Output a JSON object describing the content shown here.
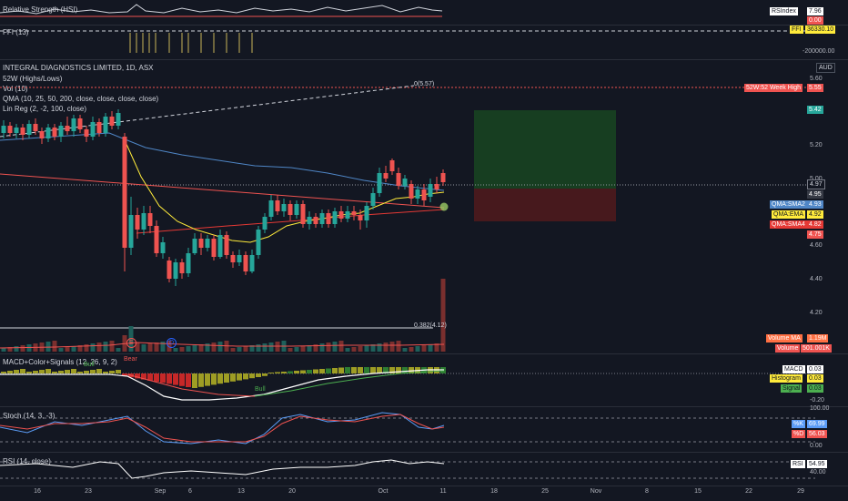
{
  "rsi_hsi": {
    "title": "Relative Strength (HSI)",
    "legend_label": "RSIndex",
    "legend_value": "7.96",
    "label2": "0.00"
  },
  "ffi": {
    "title": "FFI (13)",
    "legend_label": "FFI",
    "legend_value": "36330.10",
    "tick": "-200000.00"
  },
  "main": {
    "symbol": "INTEGRAL DIAGNOSTICS LIMITED, 1D, ASX",
    "ind1": "52W (Highs/Lows)",
    "ind2": "Vol (10)",
    "ind3": "QMA (10, 25, 50, 200, close, close, close, close)",
    "ind4": "Lin Reg (2, -2, 100, close)",
    "currency": "AUD",
    "fib_top": "0(5.57)",
    "fib_bottom": "0.382(4.12)",
    "ticks": [
      "5.60",
      "5.20",
      "5.00",
      "4.60",
      "4.40",
      "4.20"
    ],
    "labels": {
      "week52": "52W:52 Week High",
      "week52_val": "5.55",
      "target": "5.42",
      "last": "4.97",
      "entry": "4.95",
      "sma2_label": "QMA:SMA2",
      "sma2_val": "4.93",
      "ema_label": "QMA:EMA",
      "ema_val": "4.92",
      "sma4_label": "QMA:SMA4",
      "sma4_val": "4.82",
      "stop": "4.75"
    },
    "vol_labels": {
      "ma_label": "Volume MA",
      "ma_val": "1.19M",
      "vol_label": "Volume",
      "vol_val": "501.001K"
    },
    "markers": {
      "e": "E",
      "d": "D"
    }
  },
  "macd": {
    "title": "MACD+Color+Signals (12, 26, 9, 2)",
    "bear": "Bear",
    "bull1": "Bull",
    "bull2": "Bull",
    "legend": [
      {
        "label": "MACD",
        "value": "0.03"
      },
      {
        "label": "Histogram",
        "value": "0.03"
      },
      {
        "label": "Signal",
        "value": "0.03"
      }
    ],
    "tick": "-0.20"
  },
  "stoch": {
    "title": "Stoch (14, 3, -3)",
    "k_label": "%K",
    "k_val": "69.99",
    "d_label": "%D",
    "d_val": "56.03",
    "ticks": [
      "100.00",
      "0.00"
    ]
  },
  "rsi": {
    "title": "RSI (14, close)",
    "label": "RSI",
    "value": "54.95",
    "tick": "40.00"
  },
  "x_axis": [
    "16",
    "23",
    "Sep",
    "6",
    "13",
    "20",
    "Oct",
    "11",
    "18",
    "25",
    "Nov",
    "8",
    "15",
    "22",
    "29"
  ],
  "colors": {
    "up": "#26a69a",
    "down": "#ef5350",
    "bg": "#131722"
  }
}
